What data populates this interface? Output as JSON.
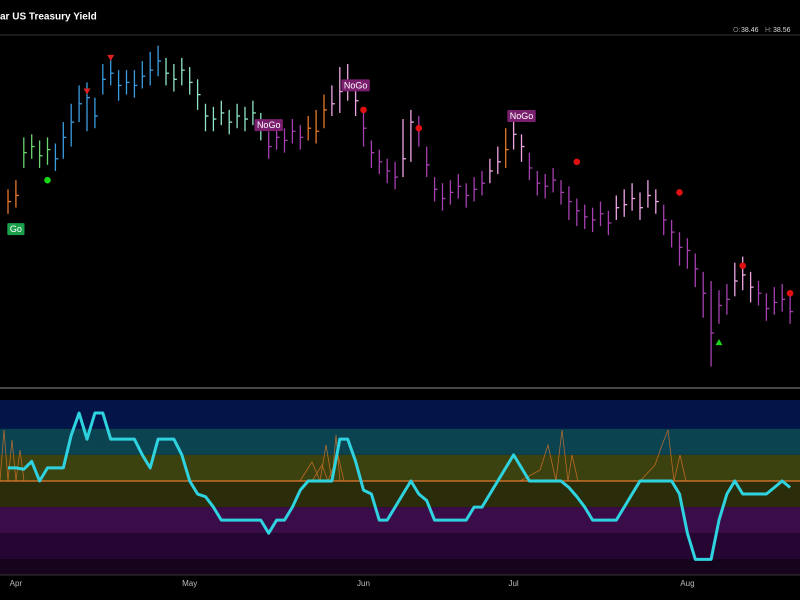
{
  "chart_data": [
    {
      "type": "ohlc",
      "title": "ar US Treasury Yield",
      "readout": [
        {
          "label": "O:",
          "value": 38.46
        },
        {
          "label": "H:",
          "value": 38.56
        }
      ],
      "ylim": [
        36.1,
        47.65
      ],
      "high": [
        42.6,
        42.9,
        44.3,
        44.4,
        44.2,
        44.3,
        44.1,
        44.8,
        45.4,
        46.0,
        46.1,
        45.6,
        46.7,
        46.9,
        46.5,
        46.5,
        46.5,
        46.8,
        47.1,
        47.3,
        46.9,
        46.7,
        46.9,
        46.6,
        46.2,
        45.4,
        45.3,
        45.5,
        45.2,
        45.4,
        45.3,
        45.5,
        45.1,
        44.5,
        44.7,
        44.6,
        44.9,
        44.7,
        45.0,
        45.2,
        45.7,
        46.0,
        46.6,
        46.7,
        46.0,
        45.2,
        44.2,
        43.9,
        43.6,
        43.5,
        44.9,
        45.2,
        45.0,
        44.0,
        43.0,
        42.8,
        42.9,
        43.1,
        42.8,
        43.0,
        43.2,
        43.6,
        44.0,
        44.6,
        44.9,
        44.4,
        43.8,
        43.2,
        43.1,
        43.3,
        42.9,
        42.7,
        42.3,
        42.1,
        42.0,
        42.2,
        41.9,
        42.4,
        42.6,
        42.8,
        42.5,
        42.9,
        42.6,
        42.1,
        41.6,
        41.2,
        41.0,
        40.5,
        39.9,
        39.6,
        39.3,
        39.5,
        40.2,
        40.4,
        39.9,
        39.6,
        39.2,
        39.4,
        39.5,
        39.1
      ],
      "low": [
        41.8,
        42.0,
        43.3,
        43.6,
        43.3,
        43.4,
        43.2,
        43.6,
        44.0,
        44.8,
        44.5,
        44.6,
        45.7,
        46.0,
        45.5,
        45.7,
        45.6,
        45.9,
        46.0,
        46.3,
        46.0,
        45.8,
        46.0,
        45.7,
        45.2,
        44.5,
        44.5,
        44.7,
        44.4,
        44.6,
        44.5,
        44.7,
        44.2,
        43.6,
        43.9,
        43.8,
        44.1,
        43.9,
        44.2,
        44.1,
        44.6,
        45.0,
        45.1,
        45.5,
        45.0,
        44.0,
        43.3,
        43.1,
        42.8,
        42.6,
        43.0,
        43.5,
        44.0,
        43.0,
        42.2,
        41.9,
        42.1,
        42.3,
        42.0,
        42.2,
        42.4,
        42.8,
        43.1,
        43.3,
        43.9,
        43.5,
        42.9,
        42.4,
        42.3,
        42.5,
        42.1,
        41.6,
        41.4,
        41.3,
        41.2,
        41.4,
        41.1,
        41.6,
        41.7,
        41.9,
        41.6,
        42.0,
        41.8,
        41.1,
        40.7,
        40.1,
        40.0,
        39.4,
        38.4,
        36.8,
        38.2,
        38.5,
        39.1,
        39.3,
        38.9,
        38.8,
        38.3,
        38.5,
        38.6,
        38.2
      ],
      "close": [
        42.2,
        42.4,
        43.8,
        44.0,
        43.7,
        43.9,
        43.6,
        44.3,
        44.8,
        45.4,
        45.6,
        45.0,
        46.2,
        46.4,
        46.0,
        46.1,
        46.0,
        46.3,
        46.5,
        46.8,
        46.4,
        46.2,
        46.5,
        46.1,
        45.7,
        45.0,
        44.9,
        45.1,
        44.8,
        45.0,
        44.9,
        45.1,
        44.6,
        44.0,
        44.3,
        44.2,
        44.5,
        44.3,
        44.6,
        44.5,
        45.2,
        45.4,
        45.8,
        46.0,
        45.5,
        44.6,
        43.8,
        43.5,
        43.2,
        43.0,
        43.6,
        44.8,
        44.6,
        43.4,
        42.6,
        42.3,
        42.5,
        42.7,
        42.4,
        42.6,
        42.8,
        43.2,
        43.5,
        43.9,
        44.4,
        44.0,
        43.3,
        42.8,
        42.7,
        42.9,
        42.5,
        42.2,
        41.9,
        41.7,
        41.6,
        41.8,
        41.5,
        42.0,
        42.1,
        42.3,
        42.0,
        42.4,
        42.2,
        41.6,
        41.2,
        40.7,
        40.6,
        40.0,
        39.2,
        37.9,
        38.8,
        39.0,
        39.6,
        39.8,
        39.4,
        39.2,
        38.7,
        38.9,
        39.0,
        38.6
      ],
      "colors": [
        "#e8782a",
        "#e8782a",
        "#6fd36f",
        "#6fd36f",
        "#6fd36f",
        "#6fd36f",
        "#3a9de0",
        "#3a9de0",
        "#3a9de0",
        "#3a9de0",
        "#3a9de0",
        "#3a9de0",
        "#3a9de0",
        "#3a9de0",
        "#3a9de0",
        "#3a9de0",
        "#3a9de0",
        "#3a9de0",
        "#3a9de0",
        "#3a9de0",
        "#8fe6c4",
        "#8fe6c4",
        "#8fe6c4",
        "#8fe6c4",
        "#8fe6c4",
        "#8fe6c4",
        "#8fe6c4",
        "#8fe6c4",
        "#8fe6c4",
        "#8fe6c4",
        "#8fe6c4",
        "#8fe6c4",
        "#8fe6c4",
        "#a63fb0",
        "#a63fb0",
        "#a63fb0",
        "#a63fb0",
        "#a63fb0",
        "#e8782a",
        "#e8782a",
        "#e8782a",
        "#f0a6e6",
        "#f0a6e6",
        "#f0a6e6",
        "#f0a6e6",
        "#a63fb0",
        "#a63fb0",
        "#a63fb0",
        "#a63fb0",
        "#a63fb0",
        "#f0a6e6",
        "#f0a6e6",
        "#a63fb0",
        "#a63fb0",
        "#a63fb0",
        "#a63fb0",
        "#a63fb0",
        "#a63fb0",
        "#a63fb0",
        "#a63fb0",
        "#a63fb0",
        "#f0a6e6",
        "#f0a6e6",
        "#e8782a",
        "#f0a6e6",
        "#f0a6e6",
        "#a63fb0",
        "#a63fb0",
        "#a63fb0",
        "#a63fb0",
        "#a63fb0",
        "#a63fb0",
        "#a63fb0",
        "#a63fb0",
        "#a63fb0",
        "#a63fb0",
        "#a63fb0",
        "#f0a6e6",
        "#f0a6e6",
        "#f0a6e6",
        "#f0a6e6",
        "#f0a6e6",
        "#f0a6e6",
        "#a63fb0",
        "#a63fb0",
        "#a63fb0",
        "#a63fb0",
        "#a63fb0",
        "#a63fb0",
        "#a63fb0",
        "#a63fb0",
        "#a63fb0",
        "#f0a6e6",
        "#f0a6e6",
        "#f0a6e6",
        "#a63fb0",
        "#a63fb0",
        "#a63fb0",
        "#a63fb0",
        "#a63fb0"
      ],
      "signals": [
        {
          "shape": "label",
          "text": "Go",
          "x": 1,
          "value": 41.3,
          "color": "#1a9e4a"
        },
        {
          "shape": "dot",
          "x": 5,
          "value": 42.9,
          "color": "#19d619"
        },
        {
          "shape": "triangle-down",
          "x": 10,
          "value": 45.8,
          "color": "#e02020"
        },
        {
          "shape": "triangle-down",
          "x": 13,
          "value": 46.9,
          "color": "#e02020"
        },
        {
          "shape": "label",
          "text": "NoGo",
          "x": 33,
          "value": 44.7,
          "color": "#7a1f6e"
        },
        {
          "shape": "label",
          "text": "NoGo",
          "x": 44,
          "value": 46.0,
          "color": "#7a1f6e"
        },
        {
          "shape": "dot",
          "x": 45,
          "value": 45.2,
          "color": "#e01010"
        },
        {
          "shape": "dot",
          "x": 52,
          "value": 44.6,
          "color": "#e01010"
        },
        {
          "shape": "label",
          "text": "NoGo",
          "x": 65,
          "value": 45.0,
          "color": "#7a1f6e"
        },
        {
          "shape": "dot",
          "x": 72,
          "value": 43.5,
          "color": "#e01010"
        },
        {
          "shape": "dot",
          "x": 85,
          "value": 42.5,
          "color": "#e01010"
        },
        {
          "shape": "triangle-up",
          "x": 90,
          "value": 37.6,
          "color": "#19d619"
        },
        {
          "shape": "dot",
          "x": 93,
          "value": 40.1,
          "color": "#e01010"
        },
        {
          "shape": "dot",
          "x": 99,
          "value": 39.2,
          "color": "#e01010"
        }
      ]
    },
    {
      "type": "line",
      "color": "#2fd3e0",
      "ylim": [
        -7.2,
        6.2
      ],
      "bands": [
        {
          "from": 4,
          "to": 6.2,
          "color": "#031548"
        },
        {
          "from": 2,
          "to": 4,
          "color": "#0b4450"
        },
        {
          "from": 0,
          "to": 2,
          "color": "#3b4210"
        },
        {
          "from": -2,
          "to": 0,
          "color": "#2a2c0a"
        },
        {
          "from": -4,
          "to": -2,
          "color": "#3a0c48"
        },
        {
          "from": -6,
          "to": -4,
          "color": "#250632"
        },
        {
          "from": -7.2,
          "to": -6,
          "color": "#16031c"
        }
      ],
      "zero_line": {
        "value": 0,
        "color": "#e8782a"
      },
      "values": [
        1.0,
        1.0,
        0.9,
        1.5,
        0.0,
        1.0,
        1.0,
        1.0,
        3.5,
        5.2,
        3.2,
        5.2,
        5.2,
        3.2,
        3.2,
        3.2,
        3.2,
        2.0,
        1.0,
        3.2,
        3.2,
        3.2,
        2.0,
        0.0,
        -1.0,
        -1.2,
        -2.0,
        -3.0,
        -3.0,
        -3.0,
        -3.0,
        -3.0,
        -3.0,
        -4.0,
        -3.0,
        -3.0,
        -2.0,
        -0.7,
        0.0,
        0.0,
        0.0,
        0.0,
        3.2,
        3.2,
        1.5,
        -0.7,
        -1.0,
        -3.0,
        -3.0,
        -2.0,
        -1.0,
        0.0,
        -1.0,
        -1.5,
        -3.0,
        -3.0,
        -3.0,
        -3.0,
        -3.0,
        -2.0,
        -2.0,
        -1.0,
        0.0,
        1.0,
        2.0,
        1.0,
        0.0,
        0.0,
        0.0,
        0.0,
        0.0,
        -0.5,
        -1.2,
        -2.0,
        -3.0,
        -3.0,
        -3.0,
        -3.0,
        -2.0,
        -1.0,
        0.0,
        0.0,
        0.0,
        0.0,
        0.0,
        -1.0,
        -4.0,
        -6.0,
        -6.0,
        -6.0,
        -3.0,
        -1.0,
        0.0,
        -1.0,
        -1.0,
        -1.0,
        -1.0,
        -0.5,
        0.0,
        -0.5
      ],
      "xticks": [
        {
          "value": 1,
          "label": "Apr"
        },
        {
          "value": 23,
          "label": "May"
        },
        {
          "value": 45,
          "label": "Jun"
        },
        {
          "value": 64,
          "label": "Jul"
        },
        {
          "value": 86,
          "label": "Aug"
        }
      ]
    }
  ]
}
